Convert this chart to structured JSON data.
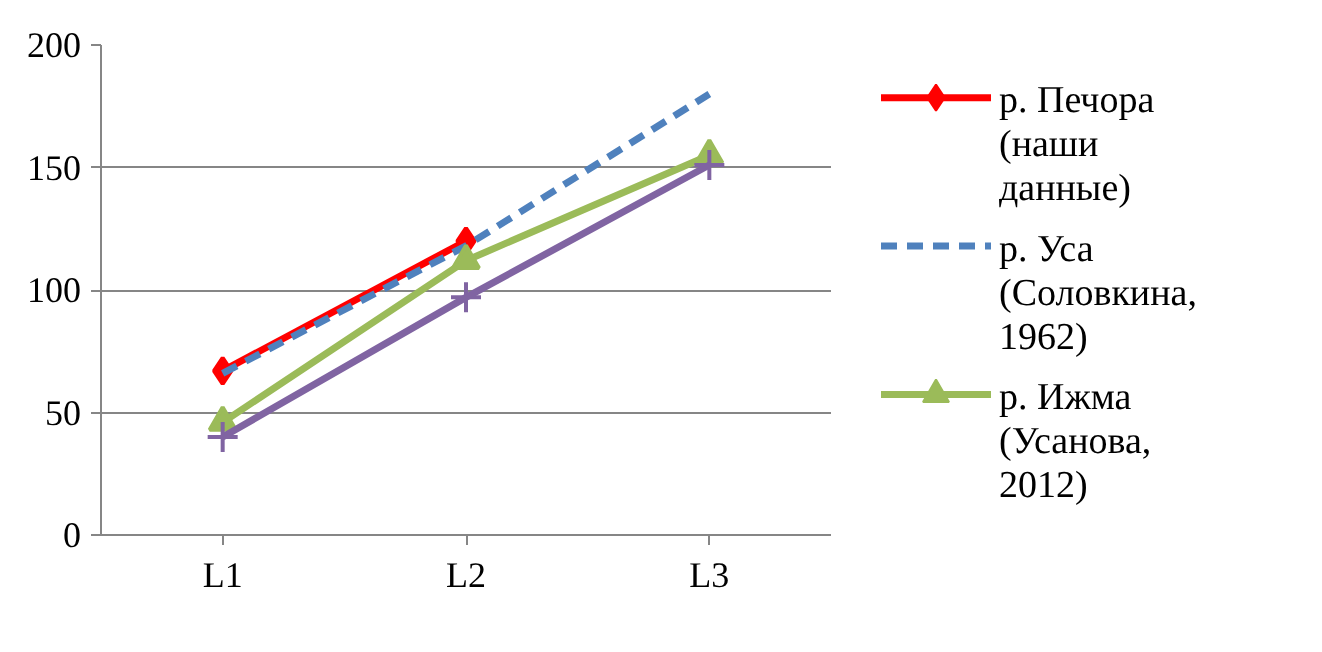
{
  "chart_data": {
    "type": "line",
    "categories": [
      "L1",
      "L2",
      "L3"
    ],
    "ylim": [
      0,
      200
    ],
    "yticks": [
      0,
      50,
      100,
      150,
      200
    ],
    "grid": "y",
    "legend": "right",
    "series": [
      {
        "name": "р. Печора (наши данные)",
        "color": "#ff0000",
        "values": [
          67,
          120,
          null
        ],
        "marker": "diamond",
        "line_style": "solid"
      },
      {
        "name": "р. Уса (Соловкина, 1962)",
        "color": "#4f81bd",
        "values": [
          66,
          118,
          180
        ],
        "marker": "none",
        "line_style": "dashed"
      },
      {
        "name": "р. Ижма (Усанова, 2012)",
        "color": "#9bbb59",
        "values": [
          46,
          112,
          155
        ],
        "marker": "triangle",
        "line_style": "solid"
      },
      {
        "color": "#8064a2",
        "values": [
          40,
          97,
          151
        ],
        "marker": "cross",
        "line_style": "solid"
      }
    ]
  }
}
